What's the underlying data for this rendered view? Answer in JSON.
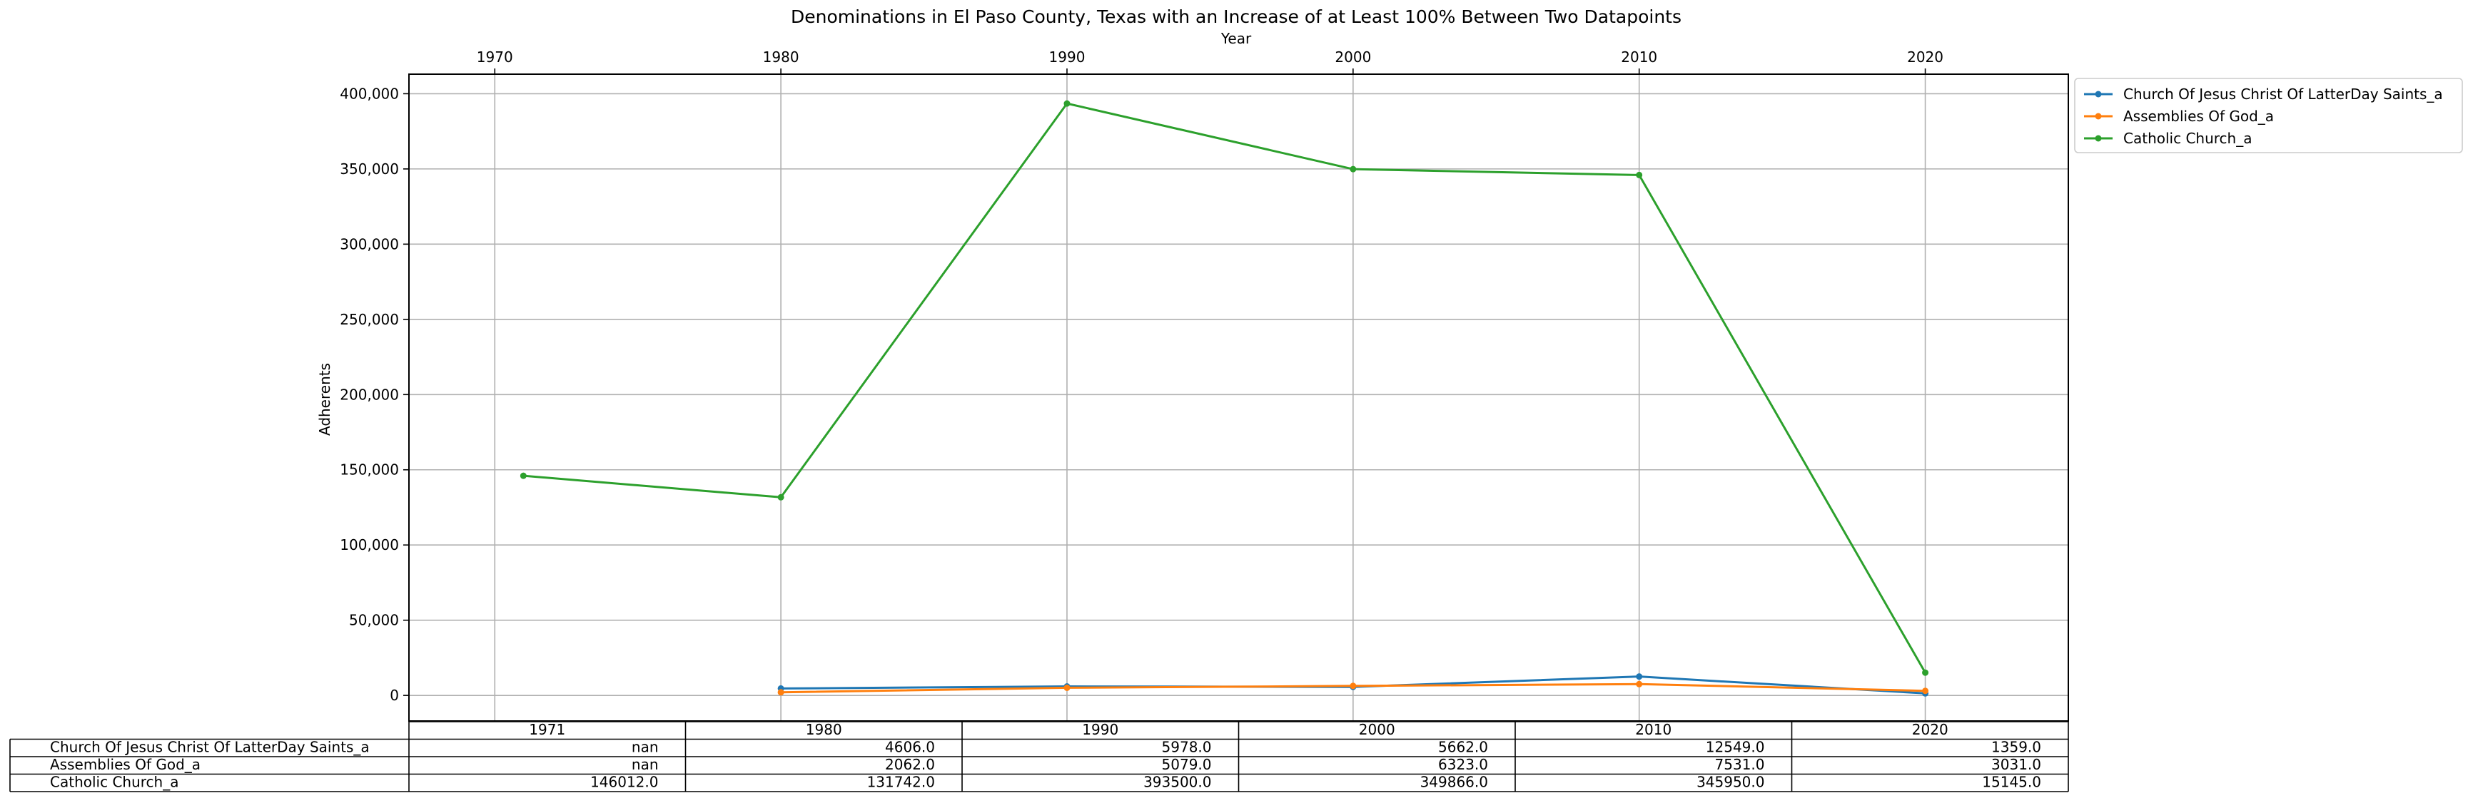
{
  "chart_data": {
    "type": "line",
    "title": "Denominations in El Paso County, Texas with an Increase of at Least 100% Between Two Datapoints",
    "xlabel": "Year",
    "ylabel": "Adherents",
    "xlim": [
      1967,
      2025
    ],
    "ylim": [
      -17000,
      413000
    ],
    "x_ticks": [
      1970,
      1980,
      1990,
      2000,
      2010,
      2020
    ],
    "y_ticks": [
      0,
      50000,
      100000,
      150000,
      200000,
      250000,
      300000,
      350000,
      400000
    ],
    "grid": true,
    "legend_position": "outside-top-right",
    "x": [
      1971,
      1980,
      1990,
      2000,
      2010,
      2020
    ],
    "series": [
      {
        "name": "Church Of Jesus Christ Of LatterDay Saints_a",
        "color": "#1f77b4",
        "values": [
          null,
          4606,
          5978,
          5662,
          12549,
          1359
        ]
      },
      {
        "name": "Assemblies Of God_a",
        "color": "#ff7f0e",
        "values": [
          null,
          2062,
          5079,
          6323,
          7531,
          3031
        ]
      },
      {
        "name": "Catholic Church_a",
        "color": "#2ca02c",
        "values": [
          146012,
          131742,
          393500,
          349866,
          345950,
          15145
        ]
      }
    ],
    "table": {
      "columns": [
        "1971",
        "1980",
        "1990",
        "2000",
        "2010",
        "2020"
      ],
      "rows": [
        {
          "label": "Church Of Jesus Christ Of LatterDay Saints_a",
          "cells": [
            "nan",
            "4606.0",
            "5978.0",
            "5662.0",
            "12549.0",
            "1359.0"
          ]
        },
        {
          "label": "Assemblies Of God_a",
          "cells": [
            "nan",
            "2062.0",
            "5079.0",
            "6323.0",
            "7531.0",
            "3031.0"
          ]
        },
        {
          "label": "Catholic Church_a",
          "cells": [
            "146012.0",
            "131742.0",
            "393500.0",
            "349866.0",
            "345950.0",
            "15145.0"
          ]
        }
      ]
    }
  }
}
